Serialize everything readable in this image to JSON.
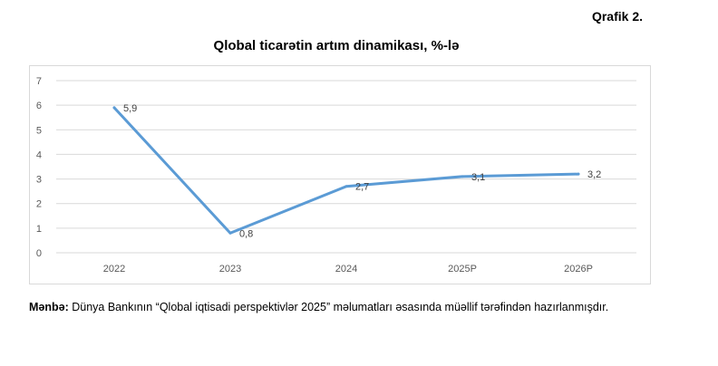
{
  "figure_label": "Qrafik 2.",
  "source": {
    "label": "Mənbə:",
    "text": "Dünya Bankının “Qlobal iqtisadi perspektivlər 2025” məlumatları əsasında müəllif tərəfindən hazırlanmışdır."
  },
  "chart_data": {
    "type": "line",
    "title": "Qlobal ticarətin artım dinamikası, %-lə",
    "categories": [
      "2022",
      "2023",
      "2024",
      "2025P",
      "2026P"
    ],
    "series": [
      {
        "values": [
          5.9,
          0.8,
          2.7,
          3.1,
          3.2
        ],
        "color": "#5b9bd5"
      }
    ],
    "data_labels": [
      "5,9",
      "0,8",
      "2,7",
      "3,1",
      "3,2"
    ],
    "y_ticks": [
      "0",
      "1",
      "2",
      "3",
      "4",
      "5",
      "6",
      "7"
    ],
    "ylim": [
      0,
      7
    ],
    "grid": true,
    "legend": "none",
    "xlabel": "",
    "ylabel": ""
  }
}
